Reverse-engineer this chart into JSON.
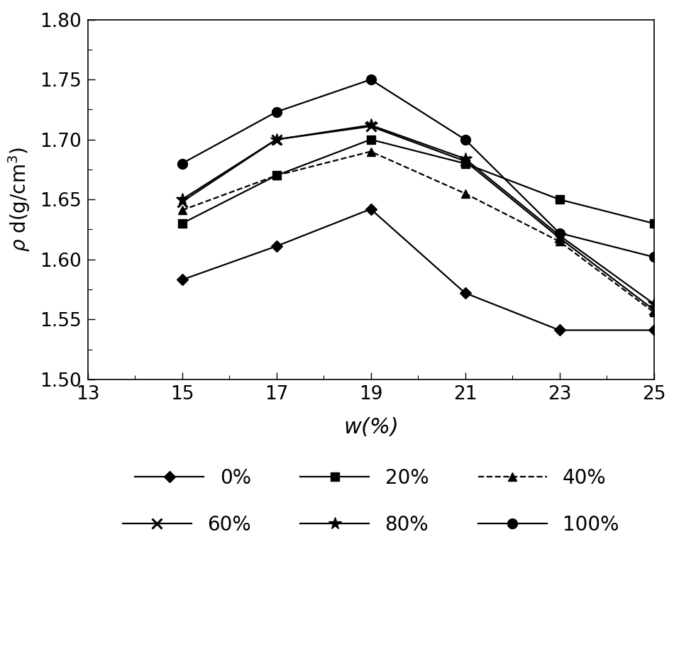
{
  "series": {
    "0%": {
      "x": [
        15,
        17,
        19,
        21,
        23,
        25
      ],
      "y": [
        1.583,
        1.611,
        1.642,
        1.572,
        1.541,
        1.541
      ],
      "linestyle": "-",
      "marker": "D",
      "label": "0%"
    },
    "20%": {
      "x": [
        15,
        17,
        19,
        21,
        23,
        25
      ],
      "y": [
        1.63,
        1.67,
        1.7,
        1.68,
        1.65,
        1.63
      ],
      "linestyle": "-",
      "marker": "s",
      "label": "20%"
    },
    "40%": {
      "x": [
        15,
        17,
        19,
        21,
        23,
        25
      ],
      "y": [
        1.641,
        1.67,
        1.69,
        1.655,
        1.615,
        1.556
      ],
      "linestyle": "--",
      "marker": "^",
      "label": "40%"
    },
    "60%": {
      "x": [
        15,
        17,
        19,
        21,
        23,
        25
      ],
      "y": [
        1.648,
        1.7,
        1.711,
        1.682,
        1.618,
        1.558
      ],
      "linestyle": "-",
      "marker": "x",
      "label": "60%"
    },
    "80%": {
      "x": [
        15,
        17,
        19,
        21,
        23,
        25
      ],
      "y": [
        1.65,
        1.7,
        1.712,
        1.684,
        1.62,
        1.563
      ],
      "linestyle": "-",
      "marker": "*",
      "label": "80%"
    },
    "100%": {
      "x": [
        15,
        17,
        19,
        21,
        23,
        25
      ],
      "y": [
        1.68,
        1.723,
        1.75,
        1.7,
        1.622,
        1.602
      ],
      "linestyle": "-",
      "marker": "o",
      "label": "100%"
    }
  },
  "xlim": [
    13,
    25
  ],
  "ylim": [
    1.5,
    1.8
  ],
  "xticks": [
    13,
    15,
    17,
    19,
    21,
    23,
    25
  ],
  "yticks": [
    1.5,
    1.55,
    1.6,
    1.65,
    1.7,
    1.75,
    1.8
  ],
  "color": "#000000",
  "linewidth": 1.6,
  "background_color": "#ffffff",
  "marker_props": {
    "0%": {
      "marker": "D",
      "ms": 8,
      "mfc": "black",
      "mec": "black",
      "mew": 1.0
    },
    "20%": {
      "marker": "s",
      "ms": 9,
      "mfc": "black",
      "mec": "black",
      "mew": 1.0
    },
    "40%": {
      "marker": "^",
      "ms": 9,
      "mfc": "black",
      "mec": "black",
      "mew": 1.0
    },
    "60%": {
      "marker": "x",
      "ms": 10,
      "mfc": "none",
      "mec": "black",
      "mew": 2.2
    },
    "80%": {
      "marker": "*",
      "ms": 13,
      "mfc": "black",
      "mec": "black",
      "mew": 1.0
    },
    "100%": {
      "marker": "o",
      "ms": 10,
      "mfc": "black",
      "mec": "black",
      "mew": 1.0
    }
  },
  "series_order": [
    "0%",
    "20%",
    "40%",
    "60%",
    "80%",
    "100%"
  ]
}
